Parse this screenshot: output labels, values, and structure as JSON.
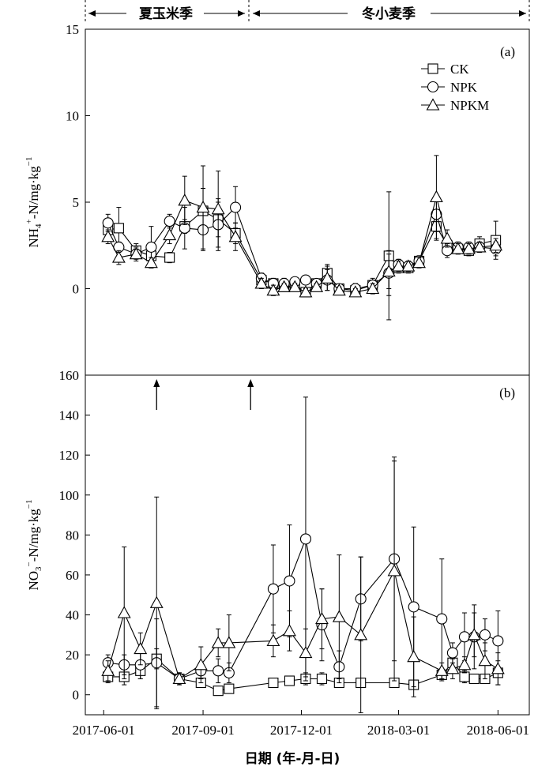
{
  "header": {
    "season1_label": "夏玉米季",
    "season2_label": "冬小麦季"
  },
  "chart_data": [
    {
      "type": "line",
      "panel_label": "(a)",
      "ylabel_main": "NH",
      "ylabel_sub": "4",
      "ylabel_sup": "+",
      "ylabel_mid": "-N/mg·kg",
      "ylabel_exp": "−1",
      "ylim": [
        -5,
        15
      ],
      "yticks": [
        0,
        5,
        10,
        15
      ],
      "legend": "top-right",
      "series": [
        {
          "name": "CK",
          "marker": "square",
          "x": [
            "2017-06-05",
            "2017-06-15",
            "2017-07-01",
            "2017-07-15",
            "2017-08-01",
            "2017-08-15",
            "2017-09-01",
            "2017-09-15",
            "2017-10-01",
            "2017-10-25",
            "2017-11-05",
            "2017-11-15",
            "2017-11-25",
            "2017-12-05",
            "2017-12-15",
            "2017-12-25",
            "2018-01-05",
            "2018-01-20",
            "2018-02-05",
            "2018-02-20",
            "2018-03-01",
            "2018-03-10",
            "2018-03-20",
            "2018-04-05",
            "2018-04-15",
            "2018-04-25",
            "2018-05-05",
            "2018-05-15",
            "2018-05-30"
          ],
          "y": [
            3.4,
            3.5,
            2.2,
            1.9,
            1.8,
            3.6,
            4.5,
            4.0,
            3.2,
            0.5,
            0.3,
            0.1,
            0.2,
            -0.2,
            0.3,
            0.9,
            0.0,
            -0.1,
            0.2,
            1.9,
            1.2,
            1.2,
            1.6,
            3.6,
            2.5,
            2.3,
            2.2,
            2.6,
            2.8
          ],
          "err": [
            0.4,
            1.2,
            0.4,
            0.3,
            0.3,
            0.4,
            1.3,
            1.0,
            0.6,
            0.3,
            0.2,
            0.2,
            0.3,
            0.2,
            0.2,
            0.5,
            0.2,
            0.2,
            0.3,
            3.7,
            0.3,
            0.3,
            0.3,
            0.8,
            0.4,
            0.3,
            0.3,
            0.4,
            1.1
          ]
        },
        {
          "name": "NPK",
          "marker": "circle",
          "x": [
            "2017-06-05",
            "2017-06-15",
            "2017-07-01",
            "2017-07-15",
            "2017-08-01",
            "2017-08-15",
            "2017-09-01",
            "2017-09-15",
            "2017-10-01",
            "2017-10-25",
            "2017-11-05",
            "2017-11-15",
            "2017-11-25",
            "2017-12-05",
            "2017-12-15",
            "2017-12-25",
            "2018-01-05",
            "2018-01-20",
            "2018-02-05",
            "2018-02-20",
            "2018-03-01",
            "2018-03-10",
            "2018-03-20",
            "2018-04-05",
            "2018-04-15",
            "2018-04-25",
            "2018-05-05",
            "2018-05-15",
            "2018-05-30"
          ],
          "y": [
            3.8,
            2.4,
            2.0,
            2.4,
            3.9,
            3.5,
            3.4,
            3.7,
            4.7,
            0.6,
            0.3,
            0.3,
            0.4,
            0.5,
            0.3,
            0.5,
            0.0,
            0.0,
            0.2,
            0.9,
            1.4,
            1.3,
            1.6,
            4.3,
            2.2,
            2.4,
            2.4,
            2.4,
            2.3
          ],
          "err": [
            0.5,
            0.3,
            0.4,
            1.2,
            0.4,
            1.2,
            1.2,
            1.5,
            1.2,
            0.3,
            0.3,
            0.3,
            0.2,
            0.2,
            0.2,
            0.6,
            0.2,
            0.3,
            0.4,
            1.3,
            0.3,
            0.3,
            0.3,
            1.0,
            0.4,
            0.3,
            0.3,
            0.3,
            0.4
          ]
        },
        {
          "name": "NPKM",
          "marker": "triangle",
          "x": [
            "2017-06-05",
            "2017-06-15",
            "2017-07-01",
            "2017-07-15",
            "2017-08-01",
            "2017-08-15",
            "2017-09-01",
            "2017-09-15",
            "2017-10-01",
            "2017-10-25",
            "2017-11-05",
            "2017-11-15",
            "2017-11-25",
            "2017-12-05",
            "2017-12-15",
            "2017-12-25",
            "2018-01-05",
            "2018-01-20",
            "2018-02-05",
            "2018-02-20",
            "2018-03-01",
            "2018-03-10",
            "2018-03-20",
            "2018-04-05",
            "2018-04-15",
            "2018-04-25",
            "2018-05-05",
            "2018-05-15",
            "2018-05-30"
          ],
          "y": [
            3.0,
            1.8,
            2.0,
            1.5,
            3.1,
            5.1,
            4.7,
            4.6,
            3.0,
            0.3,
            -0.1,
            0.1,
            0.1,
            -0.2,
            0.1,
            0.6,
            -0.1,
            -0.2,
            0.0,
            1.0,
            1.3,
            1.3,
            1.5,
            5.3,
            2.9,
            2.3,
            2.3,
            2.4,
            2.5
          ],
          "err": [
            0.4,
            0.4,
            0.3,
            0.3,
            0.5,
            1.4,
            2.4,
            2.2,
            0.8,
            0.3,
            0.3,
            0.2,
            0.2,
            0.2,
            0.2,
            0.7,
            0.2,
            0.2,
            0.3,
            1.0,
            0.3,
            0.3,
            0.3,
            2.4,
            0.5,
            0.3,
            0.3,
            0.3,
            0.4
          ]
        }
      ]
    },
    {
      "type": "line",
      "panel_label": "(b)",
      "ylabel_main": "NO",
      "ylabel_sub": "3",
      "ylabel_sup": "−",
      "ylabel_mid": "-N/mg·kg",
      "ylabel_exp": "−1",
      "xlabel": "日期 (年-月-日)",
      "ylim": [
        -10,
        160
      ],
      "yticks": [
        0,
        20,
        40,
        60,
        80,
        100,
        120,
        140,
        160
      ],
      "xlim": [
        "2017-05-15",
        "2018-06-30"
      ],
      "xticks": [
        "2017-06-01",
        "2017-09-01",
        "2017-12-01",
        "2018-03-01",
        "2018-06-01"
      ],
      "arrows": [
        "2017-07-20",
        "2017-10-15"
      ],
      "series": [
        {
          "name": "CK",
          "marker": "square",
          "x": [
            "2017-06-05",
            "2017-06-20",
            "2017-07-05",
            "2017-07-20",
            "2017-08-10",
            "2017-08-30",
            "2017-09-15",
            "2017-09-25",
            "2017-11-05",
            "2017-11-20",
            "2017-12-05",
            "2017-12-20",
            "2018-01-05",
            "2018-01-25",
            "2018-02-25",
            "2018-03-15",
            "2018-04-10",
            "2018-04-20",
            "2018-05-01",
            "2018-05-10",
            "2018-05-20",
            "2018-06-01"
          ],
          "y": [
            9,
            9,
            12,
            18,
            8,
            6,
            2,
            3,
            6,
            7,
            8,
            8,
            6,
            6,
            6,
            5,
            10,
            16,
            9,
            8,
            8,
            11
          ],
          "err": [
            3,
            4,
            4,
            5,
            2,
            2,
            2,
            2,
            2,
            2,
            3,
            3,
            2,
            2,
            2,
            2,
            3,
            4,
            3,
            2,
            2,
            6
          ]
        },
        {
          "name": "NPK",
          "marker": "circle",
          "x": [
            "2017-06-05",
            "2017-06-20",
            "2017-07-05",
            "2017-07-20",
            "2017-08-10",
            "2017-08-30",
            "2017-09-15",
            "2017-09-25",
            "2017-11-05",
            "2017-11-20",
            "2017-12-05",
            "2017-12-20",
            "2018-01-05",
            "2018-01-25",
            "2018-02-25",
            "2018-03-15",
            "2018-04-10",
            "2018-04-20",
            "2018-05-01",
            "2018-05-10",
            "2018-05-20",
            "2018-06-01"
          ],
          "y": [
            16,
            15,
            15,
            16,
            8,
            12,
            12,
            11,
            53,
            57,
            78,
            35,
            14,
            48,
            68,
            44,
            38,
            21,
            29,
            29,
            30,
            27
          ],
          "err": [
            4,
            5,
            7,
            22,
            3,
            4,
            6,
            5,
            22,
            28,
            71,
            18,
            8,
            21,
            51,
            40,
            30,
            5,
            12,
            16,
            8,
            15
          ]
        },
        {
          "name": "NPKM",
          "marker": "triangle",
          "x": [
            "2017-06-05",
            "2017-06-20",
            "2017-07-05",
            "2017-07-20",
            "2017-08-10",
            "2017-08-30",
            "2017-09-15",
            "2017-09-25",
            "2017-11-05",
            "2017-11-20",
            "2017-12-05",
            "2017-12-20",
            "2018-01-05",
            "2018-01-25",
            "2018-02-25",
            "2018-03-15",
            "2018-04-10",
            "2018-04-20",
            "2018-05-01",
            "2018-05-10",
            "2018-05-20",
            "2018-06-01"
          ],
          "y": [
            12,
            41,
            23,
            46,
            8,
            15,
            26,
            26,
            27,
            32,
            21,
            38,
            39,
            30,
            62,
            19,
            12,
            13,
            15,
            30,
            17,
            13
          ],
          "err": [
            5,
            33,
            8,
            53,
            3,
            9,
            7,
            14,
            8,
            10,
            12,
            15,
            31,
            39,
            55,
            20,
            4,
            5,
            4,
            11,
            9,
            8
          ]
        }
      ]
    }
  ]
}
